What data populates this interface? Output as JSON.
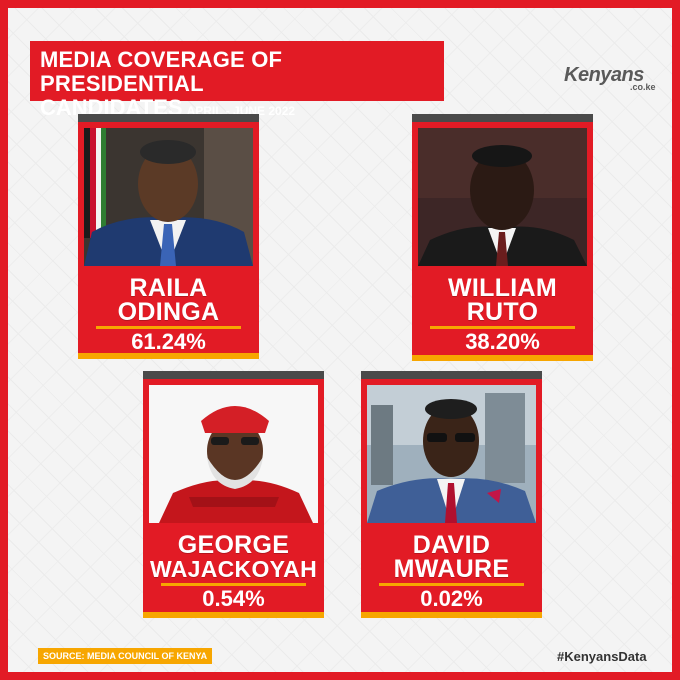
{
  "header": {
    "title_line1": "MEDIA COVERAGE OF PRESIDENTIAL",
    "title_line2": "CANDIDATES",
    "period": "APRIL - JUNE 2022"
  },
  "logo": {
    "main": "Kenyans",
    "sub": ".co.ke"
  },
  "candidates": [
    {
      "first": "RAILA",
      "last": "ODINGA",
      "share": "61.24%"
    },
    {
      "first": "WILLIAM",
      "last": "RUTO",
      "share": "38.20%"
    },
    {
      "first": "GEORGE",
      "last": "WAJACKOYAH",
      "share": "0.54%"
    },
    {
      "first": "DAVID",
      "last": "MWAURE",
      "share": "0.02%"
    }
  ],
  "footer": {
    "source": "SOURCE: MEDIA COUNCIL OF KENYA",
    "hashtag": "#KenyansData"
  },
  "colors": {
    "brand_red": "#e21b25",
    "accent_yellow": "#f7a600",
    "dark_bar": "#4a4a4a"
  }
}
